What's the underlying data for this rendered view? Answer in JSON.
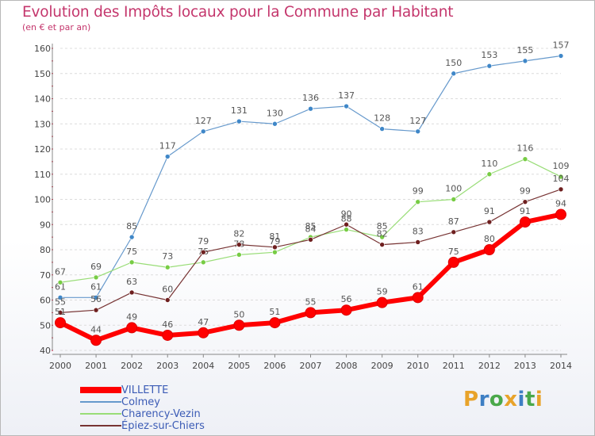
{
  "title": "Evolution des Impôts locaux pour la Commune par Habitant",
  "subtitle": "(en € et par an)",
  "logo_text": "Proxiti",
  "logo_letters": [
    {
      "ch": "P",
      "color": "#e8a32a"
    },
    {
      "ch": "r",
      "color": "#3e7fc4"
    },
    {
      "ch": "o",
      "color": "#4aa84a"
    },
    {
      "ch": "x",
      "color": "#e8a32a"
    },
    {
      "ch": "i",
      "color": "#3e7fc4"
    },
    {
      "ch": "t",
      "color": "#4aa84a"
    },
    {
      "ch": "i",
      "color": "#e8a32a"
    }
  ],
  "chart_data": {
    "type": "line",
    "x": [
      2000,
      2001,
      2002,
      2003,
      2004,
      2005,
      2006,
      2007,
      2008,
      2009,
      2010,
      2011,
      2012,
      2013,
      2014
    ],
    "ylim": [
      40,
      160
    ],
    "yticks": [
      40,
      50,
      60,
      70,
      80,
      90,
      100,
      110,
      120,
      130,
      140,
      150,
      160
    ],
    "grid": "horizontal",
    "legend_position": "bottom-left",
    "series": [
      {
        "name": "VILLETTE",
        "color": "#ff0000",
        "marker": "#ff0000",
        "width": 6,
        "values": [
          51,
          44,
          49,
          46,
          47,
          50,
          51,
          55,
          56,
          59,
          61,
          75,
          80,
          91,
          94
        ]
      },
      {
        "name": "Colmey",
        "color": "#6699cc",
        "marker": "#3f87c8",
        "width": 1.2,
        "values": [
          61,
          61,
          85,
          117,
          127,
          131,
          130,
          136,
          137,
          128,
          127,
          150,
          153,
          155,
          157
        ]
      },
      {
        "name": "Charency-Vezin",
        "color": "#99dd77",
        "marker": "#77cc44",
        "width": 1.2,
        "values": [
          67,
          69,
          75,
          73,
          75,
          78,
          79,
          85,
          88,
          85,
          99,
          100,
          110,
          116,
          109
        ]
      },
      {
        "name": "Épiez-sur-Chiers",
        "color": "#773333",
        "marker": "#6e1f1f",
        "width": 1.2,
        "values": [
          55,
          56,
          63,
          60,
          79,
          82,
          81,
          84,
          90,
          82,
          83,
          87,
          91,
          99,
          104
        ]
      }
    ]
  }
}
